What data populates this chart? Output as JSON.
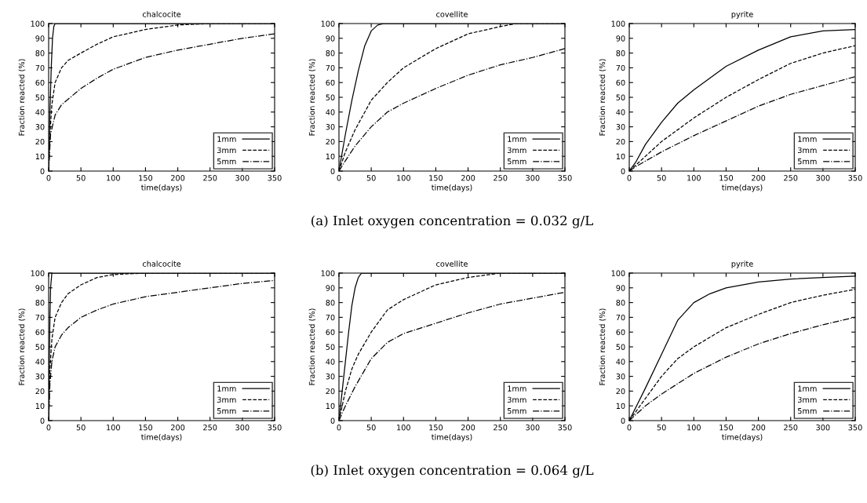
{
  "chart_data": [
    {
      "type": "line",
      "title": "chalcocite",
      "xlabel": "time(days)",
      "ylabel": "Fraction reacted (%)",
      "xlim": [
        0,
        350
      ],
      "ylim": [
        0,
        100
      ],
      "xticks": [
        0,
        50,
        100,
        150,
        200,
        250,
        300,
        350
      ],
      "yticks": [
        0,
        10,
        20,
        30,
        40,
        50,
        60,
        70,
        80,
        90,
        100
      ],
      "legend": "bottom right",
      "grid": false,
      "series": [
        {
          "name": "1mm",
          "color": "#000000",
          "line_style": "solid",
          "x": [
            0,
            2,
            4,
            6,
            8,
            10,
            350
          ],
          "values": [
            0,
            40,
            70,
            90,
            98,
            100,
            100
          ]
        },
        {
          "name": "3mm",
          "color": "#000000",
          "line_style": "dashed",
          "x": [
            0,
            2,
            5,
            10,
            20,
            30,
            50,
            75,
            100,
            150,
            200,
            250,
            350
          ],
          "values": [
            0,
            25,
            45,
            60,
            70,
            75,
            80,
            86,
            91,
            96,
            99,
            100,
            100
          ]
        },
        {
          "name": "5mm",
          "color": "#000000",
          "line_style": "dashdot",
          "x": [
            0,
            3,
            10,
            20,
            50,
            75,
            100,
            150,
            200,
            250,
            300,
            350
          ],
          "values": [
            0,
            25,
            38,
            45,
            56,
            63,
            69,
            77,
            82,
            86,
            90,
            93
          ]
        }
      ]
    },
    {
      "type": "line",
      "title": "covellite",
      "xlabel": "time(days)",
      "ylabel": "Fraction reacted (%)",
      "xlim": [
        0,
        350
      ],
      "ylim": [
        0,
        100
      ],
      "xticks": [
        0,
        50,
        100,
        150,
        200,
        250,
        300,
        350
      ],
      "yticks": [
        0,
        10,
        20,
        30,
        40,
        50,
        60,
        70,
        80,
        90,
        100
      ],
      "legend": "bottom right",
      "grid": false,
      "annotations": [
        "(a) Inlet oxygen concentration = 0.032 g/L"
      ],
      "series": [
        {
          "name": "1mm",
          "color": "#000000",
          "line_style": "solid",
          "x": [
            0,
            10,
            20,
            30,
            40,
            50,
            60,
            70,
            350
          ],
          "values": [
            0,
            25,
            48,
            68,
            85,
            95,
            99,
            100,
            100
          ]
        },
        {
          "name": "3mm",
          "color": "#000000",
          "line_style": "dashed",
          "x": [
            0,
            10,
            25,
            50,
            75,
            100,
            150,
            200,
            250,
            275,
            350
          ],
          "values": [
            0,
            13,
            28,
            48,
            60,
            70,
            83,
            93,
            98,
            100,
            100
          ]
        },
        {
          "name": "5mm",
          "color": "#000000",
          "line_style": "dashdot",
          "x": [
            0,
            10,
            25,
            50,
            75,
            100,
            150,
            200,
            250,
            300,
            350
          ],
          "values": [
            0,
            7,
            17,
            30,
            40,
            46,
            56,
            65,
            72,
            77,
            83
          ]
        }
      ]
    },
    {
      "type": "line",
      "title": "pyrite",
      "xlabel": "time(days)",
      "ylabel": "Fraction reacted (%)",
      "xlim": [
        0,
        350
      ],
      "ylim": [
        0,
        100
      ],
      "xticks": [
        0,
        50,
        100,
        150,
        200,
        250,
        300,
        350
      ],
      "yticks": [
        0,
        10,
        20,
        30,
        40,
        50,
        60,
        70,
        80,
        90,
        100
      ],
      "legend": "bottom right",
      "grid": false,
      "series": [
        {
          "name": "1mm",
          "color": "#000000",
          "line_style": "solid",
          "x": [
            0,
            10,
            25,
            50,
            75,
            100,
            125,
            150,
            200,
            250,
            300,
            350
          ],
          "values": [
            0,
            6,
            18,
            33,
            46,
            55,
            63,
            71,
            82,
            91,
            95,
            96
          ]
        },
        {
          "name": "3mm",
          "color": "#000000",
          "line_style": "dashed",
          "x": [
            0,
            10,
            50,
            100,
            150,
            200,
            250,
            300,
            350
          ],
          "values": [
            0,
            4,
            20,
            36,
            50,
            62,
            73,
            80,
            85
          ]
        },
        {
          "name": "5mm",
          "color": "#000000",
          "line_style": "dashdot",
          "x": [
            0,
            10,
            50,
            100,
            150,
            200,
            250,
            300,
            350
          ],
          "values": [
            0,
            3,
            13,
            24,
            34,
            44,
            52,
            58,
            64
          ]
        }
      ]
    },
    {
      "type": "line",
      "title": "chalcocite",
      "xlabel": "time(days)",
      "ylabel": "Fraction reacted (%)",
      "xlim": [
        0,
        350
      ],
      "ylim": [
        0,
        100
      ],
      "xticks": [
        0,
        50,
        100,
        150,
        200,
        250,
        300,
        350
      ],
      "yticks": [
        0,
        10,
        20,
        30,
        40,
        50,
        60,
        70,
        80,
        90,
        100
      ],
      "legend": "bottom right",
      "grid": false,
      "series": [
        {
          "name": "1mm",
          "color": "#000000",
          "line_style": "solid",
          "x": [
            0,
            1,
            2,
            3,
            5,
            350
          ],
          "values": [
            0,
            40,
            70,
            90,
            100,
            100
          ]
        },
        {
          "name": "3mm",
          "color": "#000000",
          "line_style": "dashed",
          "x": [
            0,
            2,
            5,
            10,
            20,
            30,
            50,
            75,
            100,
            150,
            350
          ],
          "values": [
            0,
            35,
            55,
            70,
            80,
            86,
            92,
            97,
            99,
            100,
            100
          ]
        },
        {
          "name": "5mm",
          "color": "#000000",
          "line_style": "dashdot",
          "x": [
            0,
            2,
            5,
            10,
            20,
            30,
            50,
            75,
            100,
            150,
            200,
            250,
            300,
            350
          ],
          "values": [
            0,
            25,
            40,
            50,
            58,
            63,
            70,
            75,
            79,
            84,
            87,
            90,
            93,
            95
          ]
        }
      ]
    },
    {
      "type": "line",
      "title": "covellite",
      "xlabel": "time(days)",
      "ylabel": "Fraction reacted (%)",
      "xlim": [
        0,
        350
      ],
      "ylim": [
        0,
        100
      ],
      "xticks": [
        0,
        50,
        100,
        150,
        200,
        250,
        300,
        350
      ],
      "yticks": [
        0,
        10,
        20,
        30,
        40,
        50,
        60,
        70,
        80,
        90,
        100
      ],
      "legend": "bottom right",
      "grid": false,
      "annotations": [
        "(b) Inlet oxygen concentration = 0.064 g/L"
      ],
      "series": [
        {
          "name": "1mm",
          "color": "#000000",
          "line_style": "solid",
          "x": [
            0,
            5,
            10,
            15,
            20,
            25,
            30,
            35,
            350
          ],
          "values": [
            0,
            20,
            40,
            60,
            78,
            90,
            97,
            100,
            100
          ]
        },
        {
          "name": "3mm",
          "color": "#000000",
          "line_style": "dashed",
          "x": [
            0,
            10,
            20,
            30,
            50,
            75,
            100,
            150,
            200,
            250,
            350
          ],
          "values": [
            0,
            20,
            35,
            45,
            60,
            75,
            82,
            92,
            97,
            100,
            100
          ]
        },
        {
          "name": "5mm",
          "color": "#000000",
          "line_style": "dashdot",
          "x": [
            0,
            10,
            25,
            50,
            75,
            100,
            150,
            200,
            250,
            300,
            350
          ],
          "values": [
            0,
            10,
            23,
            42,
            53,
            59,
            66,
            73,
            79,
            83,
            87
          ]
        }
      ]
    },
    {
      "type": "line",
      "title": "pyrite",
      "xlabel": "time(days)",
      "ylabel": "Fraction reacted (%)",
      "xlim": [
        0,
        350
      ],
      "ylim": [
        0,
        100
      ],
      "xticks": [
        0,
        50,
        100,
        150,
        200,
        250,
        300,
        350
      ],
      "yticks": [
        0,
        10,
        20,
        30,
        40,
        50,
        60,
        70,
        80,
        90,
        100
      ],
      "legend": "bottom right",
      "grid": false,
      "series": [
        {
          "name": "1mm",
          "color": "#000000",
          "line_style": "solid",
          "x": [
            0,
            25,
            50,
            75,
            100,
            125,
            150,
            200,
            250,
            300,
            350
          ],
          "values": [
            0,
            22,
            45,
            68,
            80,
            86,
            90,
            94,
            96,
            97,
            98
          ]
        },
        {
          "name": "3mm",
          "color": "#000000",
          "line_style": "dashed",
          "x": [
            0,
            25,
            50,
            75,
            100,
            150,
            200,
            250,
            300,
            350
          ],
          "values": [
            0,
            15,
            30,
            42,
            50,
            63,
            72,
            80,
            85,
            89
          ]
        },
        {
          "name": "5mm",
          "color": "#000000",
          "line_style": "dashdot",
          "x": [
            0,
            25,
            50,
            100,
            150,
            200,
            250,
            300,
            350
          ],
          "values": [
            0,
            10,
            18,
            32,
            43,
            52,
            59,
            65,
            70
          ]
        }
      ]
    }
  ]
}
